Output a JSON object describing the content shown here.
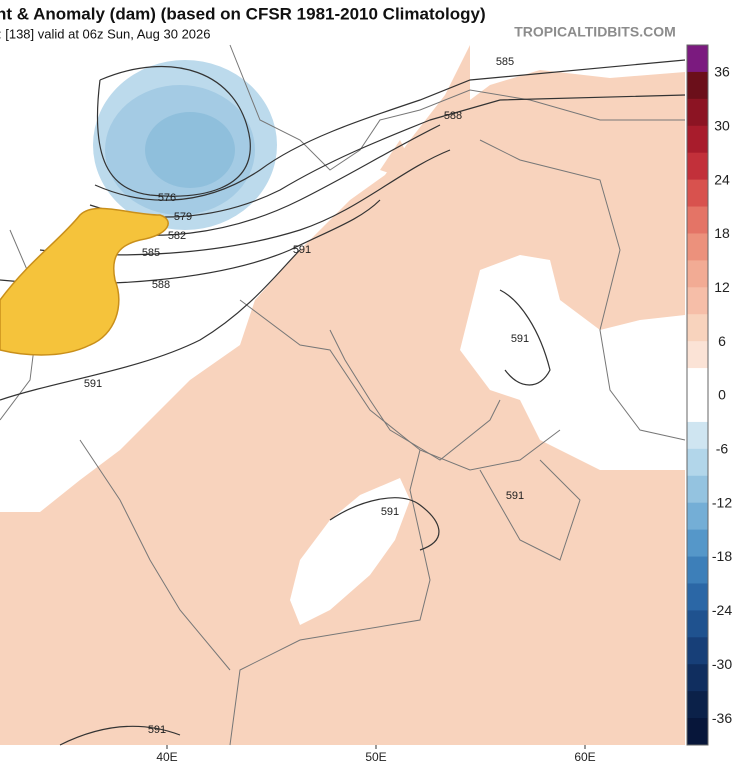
{
  "header": {
    "title": "nt & Anomaly (dam) (based on CFSR 1981-2010 Climatology)",
    "subtitle": ": [138]   valid at 06z Sun, Aug 30 2026",
    "watermark": "TROPICALTIDBITS.COM"
  },
  "colorbar": {
    "labels": [
      "36",
      "30",
      "24",
      "18",
      "12",
      "6",
      "0",
      "-6",
      "-12",
      "-18",
      "-24",
      "-30",
      "-36"
    ]
  },
  "contour_labels": [
    "585",
    "588",
    "576",
    "579",
    "582",
    "585",
    "588",
    "591",
    "591",
    "591",
    "591",
    "591",
    "591"
  ],
  "longitude_labels": [
    "40E",
    "50E",
    "60E"
  ]
}
